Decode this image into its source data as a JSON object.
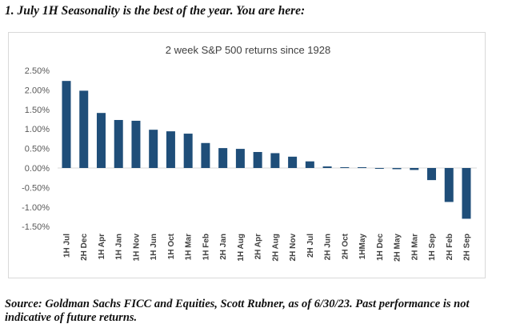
{
  "heading": "1. July 1H Seasonality is the best of the year. You are here:",
  "source": "Source: Goldman Sachs FICC and Equities, Scott Rubner, as of 6/30/23. Past performance is not indicative of future returns.",
  "chart_data": {
    "type": "bar",
    "title": "2 week S&P 500 returns since 1928",
    "xlabel": "",
    "ylabel": "",
    "ylim": [
      -1.5,
      2.5
    ],
    "yticks": [
      "2.50%",
      "2.00%",
      "1.50%",
      "1.00%",
      "0.50%",
      "0.00%",
      "-0.50%",
      "-1.00%",
      "-1.50%"
    ],
    "ytick_values": [
      2.5,
      2.0,
      1.5,
      1.0,
      0.5,
      0.0,
      -0.5,
      -1.0,
      -1.5
    ],
    "grid": false,
    "legend": "none",
    "bar_color": "#1f4e79",
    "categories": [
      "1H Jul",
      "2H Dec",
      "1H Apr",
      "1H Jan",
      "1H Nov",
      "1H Jun",
      "1H Oct",
      "1H Mar",
      "1H Feb",
      "2H Jan",
      "1H Aug",
      "2H Apr",
      "2H Aug",
      "2H Nov",
      "2H Jul",
      "2H Jun",
      "2H Oct",
      "1HMay",
      "1H Dec",
      "2H May",
      "2H Mar",
      "1H Sep",
      "2H Feb",
      "2H Sep"
    ],
    "values": [
      2.23,
      1.98,
      1.41,
      1.23,
      1.21,
      0.98,
      0.94,
      0.88,
      0.64,
      0.51,
      0.49,
      0.41,
      0.38,
      0.29,
      0.17,
      0.04,
      0.02,
      0.02,
      -0.01,
      -0.03,
      -0.05,
      -0.31,
      -0.87,
      -1.3
    ]
  }
}
